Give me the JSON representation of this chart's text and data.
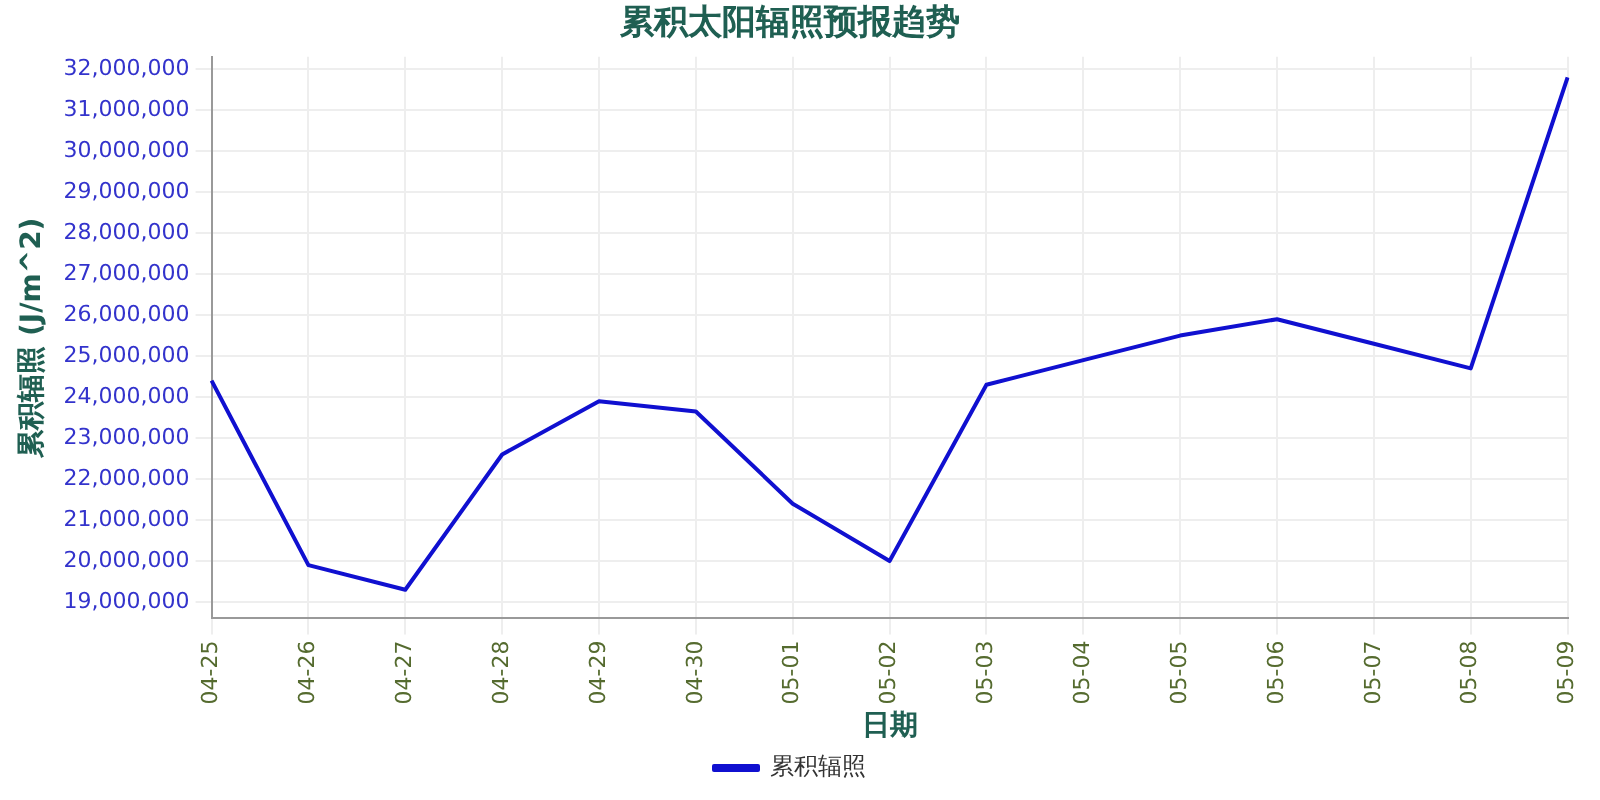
{
  "chart_data": {
    "type": "line",
    "title": "累积太阳辐照预报趋势",
    "xlabel": "日期",
    "ylabel": "累积辐照 (J/m^2)",
    "categories": [
      "04-25",
      "04-26",
      "04-27",
      "04-28",
      "04-29",
      "04-30",
      "05-01",
      "05-02",
      "05-03",
      "05-04",
      "05-05",
      "05-06",
      "05-07",
      "05-08",
      "05-09"
    ],
    "series": [
      {
        "name": "累积辐照",
        "color": "#1010d0",
        "values": [
          24400000,
          19900000,
          19300000,
          22600000,
          23900000,
          23650000,
          21400000,
          20000000,
          24300000,
          24900000,
          25500000,
          25900000,
          25300000,
          24700000,
          31800000
        ]
      }
    ],
    "ylim": [
      18600000,
      32300000
    ],
    "yticks": [
      {
        "value": 19000000,
        "label": "19,000,000"
      },
      {
        "value": 20000000,
        "label": "20,000,000"
      },
      {
        "value": 21000000,
        "label": "21,000,000"
      },
      {
        "value": 22000000,
        "label": "22,000,000"
      },
      {
        "value": 23000000,
        "label": "23,000,000"
      },
      {
        "value": 24000000,
        "label": "24,000,000"
      },
      {
        "value": 25000000,
        "label": "25,000,000"
      },
      {
        "value": 26000000,
        "label": "26,000,000"
      },
      {
        "value": 27000000,
        "label": "27,000,000"
      },
      {
        "value": 28000000,
        "label": "28,000,000"
      },
      {
        "value": 29000000,
        "label": "29,000,000"
      },
      {
        "value": 30000000,
        "label": "30,000,000"
      },
      {
        "value": 31000000,
        "label": "31,000,000"
      },
      {
        "value": 32000000,
        "label": "32,000,000"
      }
    ],
    "grid": true,
    "legend": "bottom",
    "marker": "none",
    "line_style": "solid"
  }
}
